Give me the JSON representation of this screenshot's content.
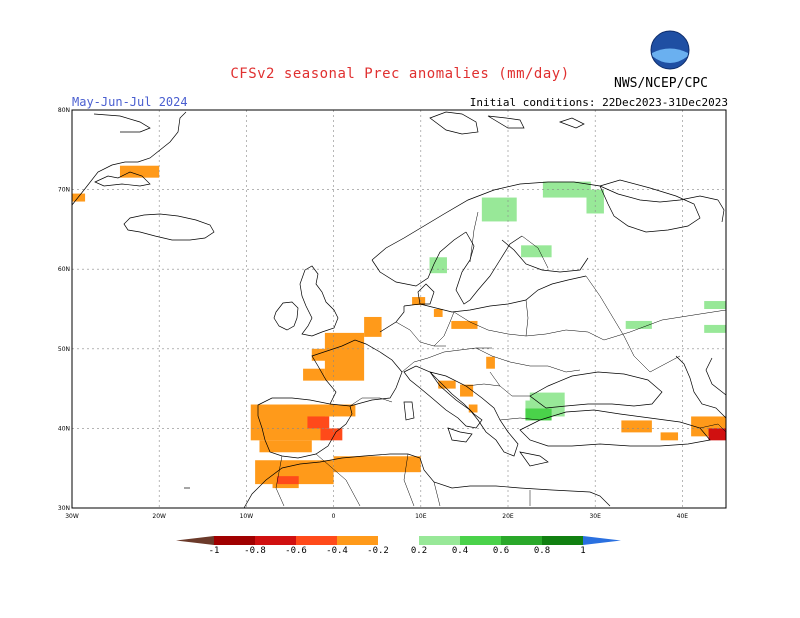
{
  "header": {
    "title": "CFSv2 seasonal Prec anomalies (mm/day)",
    "season": "May-Jun-Jul 2024",
    "initial_conditions": "Initial conditions: 22Dec2023-31Dec2023",
    "agency": "NWS/NCEP/CPC",
    "logo_text": "NOAA"
  },
  "map": {
    "lon_range": [
      -30,
      45
    ],
    "lat_range": [
      30,
      80
    ],
    "lon_ticks": [
      {
        "value": -30,
        "label": "30W"
      },
      {
        "value": -20,
        "label": "20W"
      },
      {
        "value": -10,
        "label": "10W"
      },
      {
        "value": 0,
        "label": "0"
      },
      {
        "value": 10,
        "label": "10E"
      },
      {
        "value": 20,
        "label": "20E"
      },
      {
        "value": 30,
        "label": "30E"
      },
      {
        "value": 40,
        "label": "40E"
      }
    ],
    "lat_ticks": [
      {
        "value": 30,
        "label": "30N"
      },
      {
        "value": 40,
        "label": "40N"
      },
      {
        "value": 50,
        "label": "50N"
      },
      {
        "value": 60,
        "label": "60N"
      },
      {
        "value": 70,
        "label": "70N"
      },
      {
        "value": 80,
        "label": "80N"
      }
    ],
    "anomaly_cells_deg": [
      {
        "lon": -24.5,
        "lat": 71.5,
        "w": 4.5,
        "h": 1.5,
        "class": "dry_02"
      },
      {
        "lon": -30.0,
        "lat": 68.5,
        "w": 1.5,
        "h": 1.0,
        "class": "dry_02"
      },
      {
        "lon": -9.5,
        "lat": 38.5,
        "w": 8.5,
        "h": 4.5,
        "class": "dry_02"
      },
      {
        "lon": -8.5,
        "lat": 37.0,
        "w": 6.0,
        "h": 1.5,
        "class": "dry_02"
      },
      {
        "lon": -5.5,
        "lat": 41.5,
        "w": 8.0,
        "h": 1.5,
        "class": "dry_02"
      },
      {
        "lon": -1.0,
        "lat": 46.0,
        "w": 4.5,
        "h": 6.0,
        "class": "dry_02"
      },
      {
        "lon": -2.5,
        "lat": 48.5,
        "w": 3.5,
        "h": 1.5,
        "class": "dry_02"
      },
      {
        "lon": 3.5,
        "lat": 51.5,
        "w": 2.0,
        "h": 2.5,
        "class": "dry_02"
      },
      {
        "lon": -3.5,
        "lat": 46.0,
        "w": 2.5,
        "h": 1.5,
        "class": "dry_02"
      },
      {
        "lon": -9.0,
        "lat": 33.0,
        "w": 9.0,
        "h": 3.0,
        "class": "dry_02"
      },
      {
        "lon": 0.0,
        "lat": 34.5,
        "w": 10.0,
        "h": 2.0,
        "class": "dry_02"
      },
      {
        "lon": -7.0,
        "lat": 32.5,
        "w": 3.0,
        "h": 1.0,
        "class": "dry_02"
      },
      {
        "lon": 12.0,
        "lat": 45.0,
        "w": 2.0,
        "h": 1.0,
        "class": "dry_02"
      },
      {
        "lon": 14.5,
        "lat": 44.0,
        "w": 1.5,
        "h": 1.5,
        "class": "dry_02"
      },
      {
        "lon": 15.5,
        "lat": 42.0,
        "w": 1.0,
        "h": 1.0,
        "class": "dry_02"
      },
      {
        "lon": 9.0,
        "lat": 55.5,
        "w": 1.5,
        "h": 1.0,
        "class": "dry_02"
      },
      {
        "lon": 11.5,
        "lat": 54.0,
        "w": 1.0,
        "h": 1.0,
        "class": "dry_02"
      },
      {
        "lon": 13.5,
        "lat": 52.5,
        "w": 3.0,
        "h": 1.0,
        "class": "dry_02"
      },
      {
        "lon": 33.0,
        "lat": 39.5,
        "w": 3.5,
        "h": 1.5,
        "class": "dry_02"
      },
      {
        "lon": 37.5,
        "lat": 38.5,
        "w": 2.0,
        "h": 1.0,
        "class": "dry_02"
      },
      {
        "lon": 41.0,
        "lat": 39.0,
        "w": 4.0,
        "h": 2.5,
        "class": "dry_02"
      },
      {
        "lon": 17.5,
        "lat": 47.5,
        "w": 1.0,
        "h": 1.5,
        "class": "dry_02"
      },
      {
        "lon": -3.0,
        "lat": 40.0,
        "w": 2.5,
        "h": 1.5,
        "class": "dry_04"
      },
      {
        "lon": -1.5,
        "lat": 38.5,
        "w": 2.5,
        "h": 1.5,
        "class": "dry_04"
      },
      {
        "lon": -6.5,
        "lat": 33.0,
        "w": 2.5,
        "h": 1.0,
        "class": "dry_04"
      },
      {
        "lon": 43.0,
        "lat": 38.5,
        "w": 2.0,
        "h": 1.5,
        "class": "dry_06"
      },
      {
        "lon": 22.0,
        "lat": 41.5,
        "w": 4.5,
        "h": 2.0,
        "class": "wet_02"
      },
      {
        "lon": 22.5,
        "lat": 43.0,
        "w": 4.0,
        "h": 1.5,
        "class": "wet_02"
      },
      {
        "lon": 11.0,
        "lat": 59.5,
        "w": 2.0,
        "h": 2.0,
        "class": "wet_02"
      },
      {
        "lon": 21.5,
        "lat": 61.5,
        "w": 3.5,
        "h": 1.5,
        "class": "wet_02"
      },
      {
        "lon": 17.0,
        "lat": 66.0,
        "w": 4.0,
        "h": 3.0,
        "class": "wet_02"
      },
      {
        "lon": 24.0,
        "lat": 69.0,
        "w": 5.5,
        "h": 2.0,
        "class": "wet_02"
      },
      {
        "lon": 29.0,
        "lat": 67.0,
        "w": 2.0,
        "h": 3.0,
        "class": "wet_02"
      },
      {
        "lon": 33.5,
        "lat": 52.5,
        "w": 3.0,
        "h": 1.0,
        "class": "wet_02"
      },
      {
        "lon": 42.5,
        "lat": 52.0,
        "w": 2.5,
        "h": 1.0,
        "class": "wet_02"
      },
      {
        "lon": 42.5,
        "lat": 55.0,
        "w": 2.5,
        "h": 1.0,
        "class": "wet_02"
      },
      {
        "lon": 22.0,
        "lat": 41.0,
        "w": 3.0,
        "h": 1.5,
        "class": "wet_04"
      }
    ]
  },
  "colorbar": {
    "labels": [
      "-1",
      "-0.8",
      "-0.6",
      "-0.4",
      "-0.2",
      "0.2",
      "0.4",
      "0.6",
      "0.8",
      "1"
    ],
    "colors": [
      "#6b3a2a",
      "#a00000",
      "#d01010",
      "#ff4a1a",
      "#ff9a1a",
      "#ffffff",
      "#98e898",
      "#4ad24a",
      "#2aa82a",
      "#118011",
      "#2a70e0"
    ],
    "class_colors": {
      "dry_02": "#ff9a1a",
      "dry_04": "#ff4a1a",
      "dry_06": "#d01010",
      "wet_02": "#98e898",
      "wet_04": "#4ad24a"
    }
  }
}
